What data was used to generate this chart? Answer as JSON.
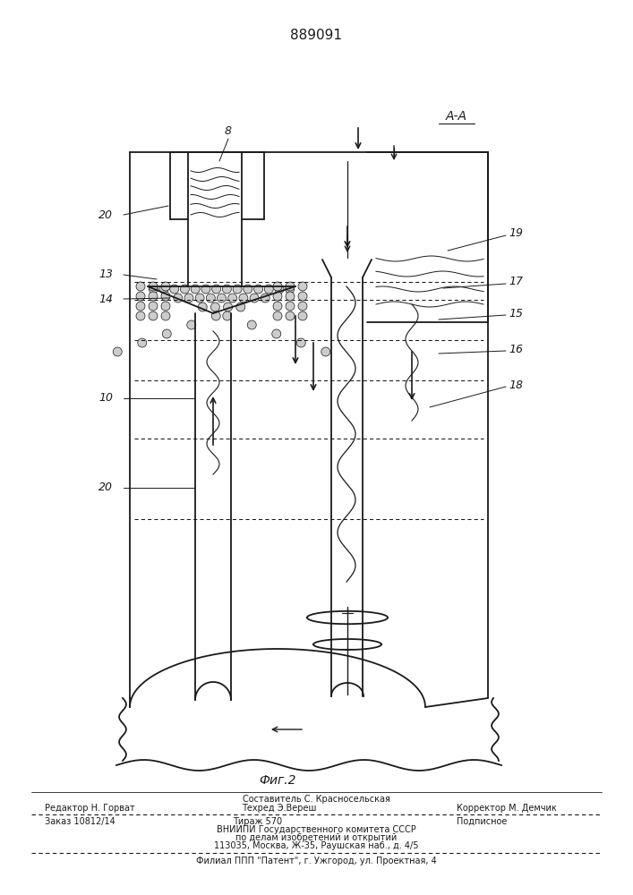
{
  "patent_number": "889091",
  "fig_label": "Фиг.2",
  "section_label": "А-А",
  "background_color": "#ffffff",
  "line_color": "#1a1a1a",
  "footer": {
    "line1_center": "Составитель С. Красносельская",
    "line2_left": "Редактор Н. Горват",
    "line2_center": "Техред Э.Вереш",
    "line2_right": "Корректор М. Демчик",
    "line3_left": "Заказ 10812/14",
    "line3_center": "Тираж 570",
    "line3_right": "Подписное",
    "line4": "ВНИИПИ Государственного комитета СССР",
    "line5": "по делам изобретений и открытий",
    "line6": "113035, Москва, Ж-35, Раушская наб., д. 4/5",
    "line7": "Филиал ППП \"Патент\", г. Ужгород, ул. Проектная, 4"
  }
}
